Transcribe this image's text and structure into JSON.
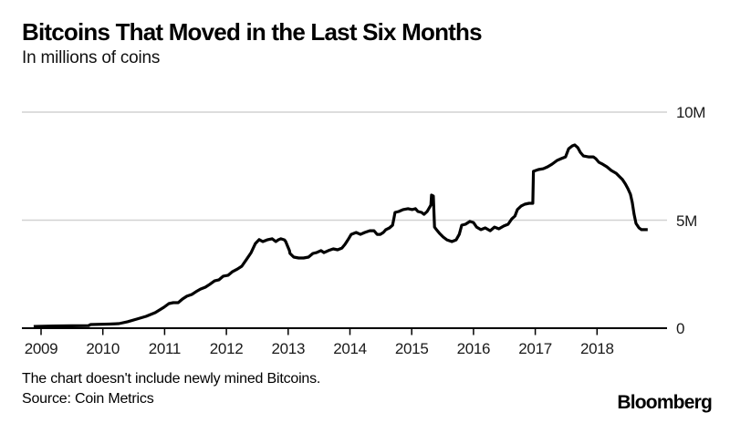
{
  "header": {
    "title": "Bitcoins That Moved in the Last Six Months",
    "subtitle": "In millions of coins"
  },
  "footer": {
    "note": "The chart doesn't include newly mined Bitcoins.",
    "source": "Source: Coin Metrics",
    "brand": "Bloomberg"
  },
  "chart_data": {
    "type": "line",
    "title": "Bitcoins That Moved in the Last Six Months",
    "subtitle": "In millions of coins",
    "unit": "millions of coins",
    "xlabel": "",
    "ylabel": "",
    "xlim": [
      2008.7,
      2019.1
    ],
    "ylim": [
      0,
      10
    ],
    "grid": "horizontal",
    "legend_position": "none",
    "line_color": "#000000",
    "gridline_color": "#d2d2d2",
    "axis_color": "#000000",
    "xticks": [
      2009,
      2010,
      2011,
      2012,
      2013,
      2014,
      2015,
      2016,
      2017,
      2018
    ],
    "xticklabels": [
      "2009",
      "2010",
      "2011",
      "2012",
      "2013",
      "2014",
      "2015",
      "2016",
      "2017",
      "2018"
    ],
    "yticks": [
      0,
      5,
      10
    ],
    "yticklabels": [
      "0",
      "5M",
      "10M"
    ],
    "series": [
      {
        "name": "bitcoins-moved-in-last-six-months",
        "points": [
          [
            2008.88,
            0.08
          ],
          [
            2009.2,
            0.1
          ],
          [
            2009.5,
            0.11
          ],
          [
            2009.77,
            0.12
          ],
          [
            2009.8,
            0.17
          ],
          [
            2010.1,
            0.19
          ],
          [
            2010.26,
            0.21
          ],
          [
            2010.4,
            0.3
          ],
          [
            2010.55,
            0.42
          ],
          [
            2010.7,
            0.55
          ],
          [
            2010.85,
            0.72
          ],
          [
            2010.99,
            0.97
          ],
          [
            2011.07,
            1.14
          ],
          [
            2011.14,
            1.18
          ],
          [
            2011.22,
            1.18
          ],
          [
            2011.29,
            1.35
          ],
          [
            2011.36,
            1.48
          ],
          [
            2011.44,
            1.56
          ],
          [
            2011.51,
            1.69
          ],
          [
            2011.58,
            1.81
          ],
          [
            2011.66,
            1.9
          ],
          [
            2011.73,
            2.03
          ],
          [
            2011.81,
            2.19
          ],
          [
            2011.88,
            2.24
          ],
          [
            2011.95,
            2.41
          ],
          [
            2012.03,
            2.45
          ],
          [
            2012.1,
            2.62
          ],
          [
            2012.18,
            2.74
          ],
          [
            2012.25,
            2.87
          ],
          [
            2012.32,
            3.16
          ],
          [
            2012.4,
            3.5
          ],
          [
            2012.47,
            3.92
          ],
          [
            2012.53,
            4.1
          ],
          [
            2012.59,
            4.01
          ],
          [
            2012.66,
            4.09
          ],
          [
            2012.74,
            4.14
          ],
          [
            2012.8,
            4.01
          ],
          [
            2012.84,
            4.09
          ],
          [
            2012.88,
            4.14
          ],
          [
            2012.94,
            4.09
          ],
          [
            2012.96,
            4.01
          ],
          [
            2012.99,
            3.8
          ],
          [
            2013.02,
            3.59
          ],
          [
            2013.03,
            3.46
          ],
          [
            2013.09,
            3.29
          ],
          [
            2013.17,
            3.25
          ],
          [
            2013.25,
            3.25
          ],
          [
            2013.33,
            3.29
          ],
          [
            2013.4,
            3.46
          ],
          [
            2013.46,
            3.5
          ],
          [
            2013.53,
            3.59
          ],
          [
            2013.58,
            3.5
          ],
          [
            2013.65,
            3.59
          ],
          [
            2013.73,
            3.67
          ],
          [
            2013.8,
            3.63
          ],
          [
            2013.87,
            3.71
          ],
          [
            2013.92,
            3.88
          ],
          [
            2013.97,
            4.1
          ],
          [
            2014.02,
            4.34
          ],
          [
            2014.1,
            4.43
          ],
          [
            2014.17,
            4.34
          ],
          [
            2014.24,
            4.43
          ],
          [
            2014.32,
            4.51
          ],
          [
            2014.39,
            4.51
          ],
          [
            2014.44,
            4.34
          ],
          [
            2014.49,
            4.34
          ],
          [
            2014.54,
            4.43
          ],
          [
            2014.58,
            4.56
          ],
          [
            2014.64,
            4.64
          ],
          [
            2014.69,
            4.77
          ],
          [
            2014.71,
            5.06
          ],
          [
            2014.73,
            5.36
          ],
          [
            2014.79,
            5.4
          ],
          [
            2014.86,
            5.49
          ],
          [
            2014.94,
            5.53
          ],
          [
            2015.01,
            5.49
          ],
          [
            2015.06,
            5.53
          ],
          [
            2015.1,
            5.4
          ],
          [
            2015.16,
            5.36
          ],
          [
            2015.2,
            5.27
          ],
          [
            2015.25,
            5.4
          ],
          [
            2015.31,
            5.7
          ],
          [
            2015.32,
            6.16
          ],
          [
            2015.35,
            6.12
          ],
          [
            2015.37,
            4.68
          ],
          [
            2015.4,
            4.56
          ],
          [
            2015.45,
            4.39
          ],
          [
            2015.51,
            4.22
          ],
          [
            2015.57,
            4.09
          ],
          [
            2015.65,
            4.01
          ],
          [
            2015.72,
            4.09
          ],
          [
            2015.77,
            4.34
          ],
          [
            2015.81,
            4.77
          ],
          [
            2015.87,
            4.81
          ],
          [
            2015.94,
            4.94
          ],
          [
            2016.0,
            4.89
          ],
          [
            2016.05,
            4.68
          ],
          [
            2016.12,
            4.56
          ],
          [
            2016.19,
            4.64
          ],
          [
            2016.27,
            4.51
          ],
          [
            2016.34,
            4.68
          ],
          [
            2016.41,
            4.6
          ],
          [
            2016.49,
            4.73
          ],
          [
            2016.56,
            4.81
          ],
          [
            2016.62,
            5.06
          ],
          [
            2016.67,
            5.19
          ],
          [
            2016.71,
            5.49
          ],
          [
            2016.77,
            5.65
          ],
          [
            2016.83,
            5.74
          ],
          [
            2016.9,
            5.78
          ],
          [
            2016.96,
            5.78
          ],
          [
            2016.97,
            7.26
          ],
          [
            2017.05,
            7.34
          ],
          [
            2017.13,
            7.38
          ],
          [
            2017.2,
            7.47
          ],
          [
            2017.27,
            7.59
          ],
          [
            2017.35,
            7.76
          ],
          [
            2017.42,
            7.85
          ],
          [
            2017.49,
            7.93
          ],
          [
            2017.54,
            8.31
          ],
          [
            2017.6,
            8.44
          ],
          [
            2017.64,
            8.48
          ],
          [
            2017.69,
            8.35
          ],
          [
            2017.73,
            8.14
          ],
          [
            2017.78,
            7.97
          ],
          [
            2017.86,
            7.93
          ],
          [
            2017.94,
            7.93
          ],
          [
            2017.98,
            7.85
          ],
          [
            2018.03,
            7.68
          ],
          [
            2018.09,
            7.59
          ],
          [
            2018.16,
            7.47
          ],
          [
            2018.23,
            7.3
          ],
          [
            2018.31,
            7.17
          ],
          [
            2018.37,
            7.0
          ],
          [
            2018.41,
            6.88
          ],
          [
            2018.46,
            6.67
          ],
          [
            2018.5,
            6.46
          ],
          [
            2018.54,
            6.2
          ],
          [
            2018.57,
            5.82
          ],
          [
            2018.6,
            5.27
          ],
          [
            2018.63,
            4.85
          ],
          [
            2018.68,
            4.64
          ],
          [
            2018.72,
            4.56
          ],
          [
            2018.82,
            4.56
          ]
        ]
      }
    ]
  }
}
